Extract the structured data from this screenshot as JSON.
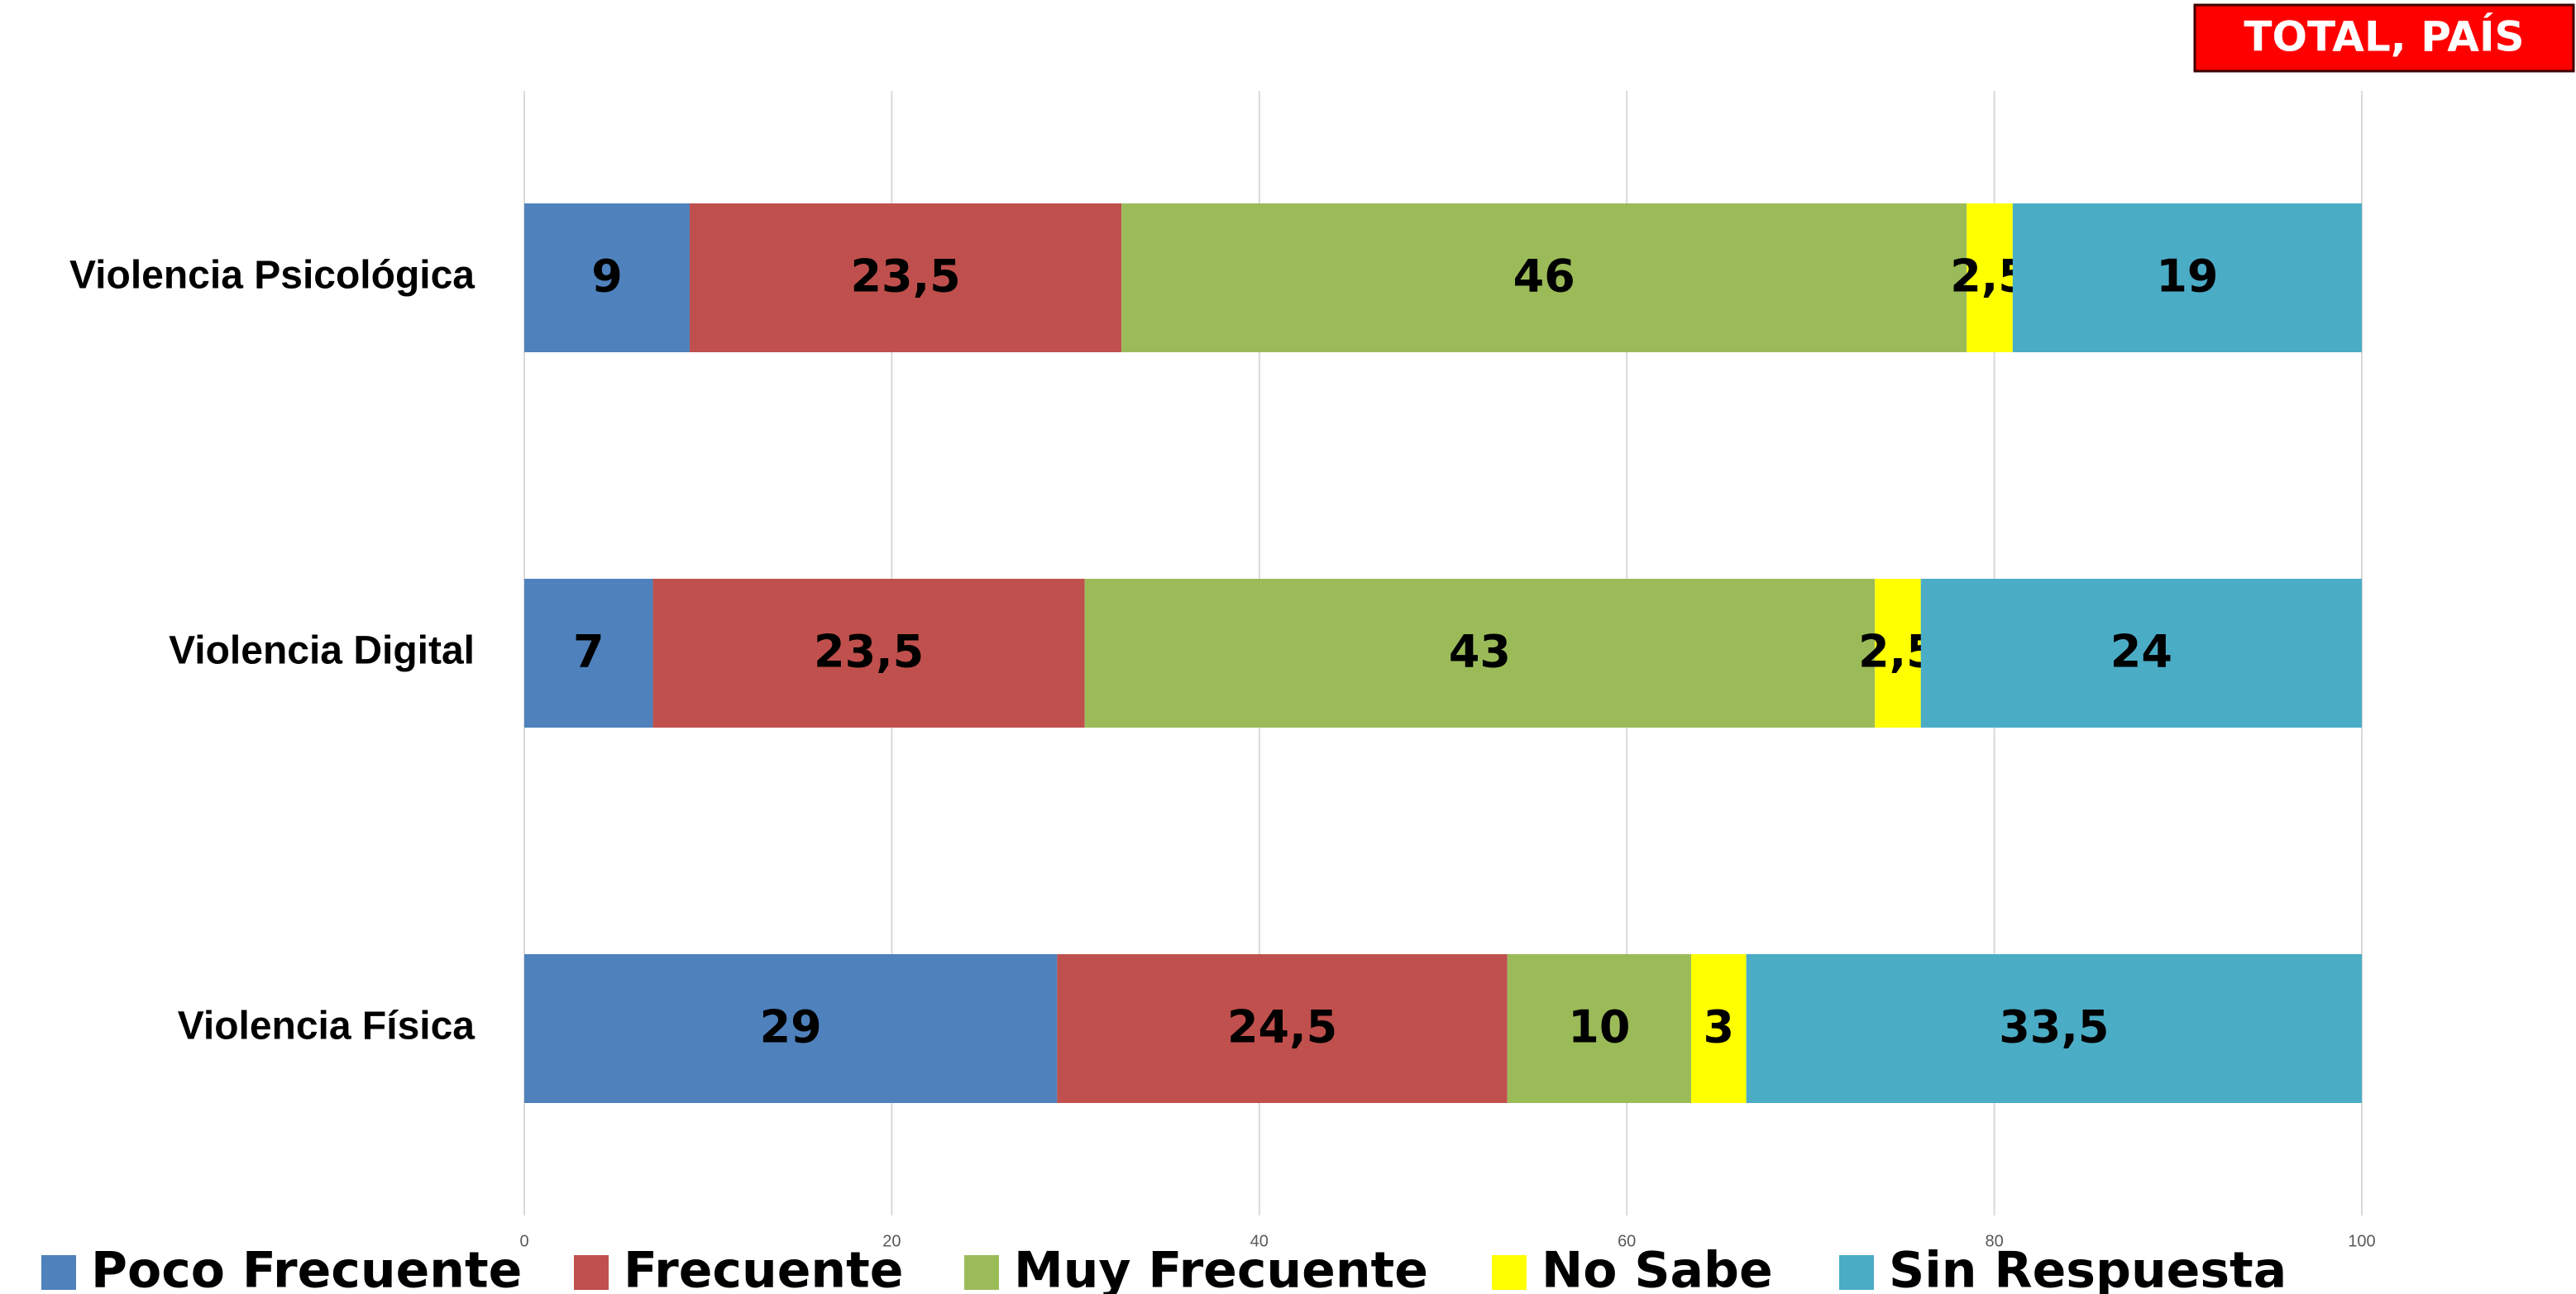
{
  "chart_data": {
    "type": "bar",
    "orientation": "horizontal",
    "stacked": true,
    "annotation": "TOTAL, PAÍS",
    "categories": [
      "Violencia Psicológica",
      "Violencia Digital",
      "Violencia Física"
    ],
    "series": [
      {
        "name": "Poco Frecuente",
        "color": "#4f81bd",
        "values": [
          9,
          7,
          29
        ]
      },
      {
        "name": "Frecuente",
        "color": "#c0504d",
        "values": [
          23.5,
          23.5,
          24.5
        ],
        "value_labels": [
          "23,5",
          "23,5",
          "24,5"
        ]
      },
      {
        "name": "Muy Frecuente",
        "color": "#9bbb59",
        "values": [
          46,
          43,
          10
        ]
      },
      {
        "name": "No Sabe",
        "color": "#ffff00",
        "values": [
          2.5,
          2.5,
          3
        ],
        "value_labels": [
          "2,5",
          "2,5",
          "3"
        ]
      },
      {
        "name": "Sin Respuesta",
        "color": "#4bacc6",
        "values": [
          19,
          24,
          33.5
        ],
        "value_labels": [
          "19",
          "24",
          "33,5"
        ]
      }
    ],
    "xlim": [
      0,
      100
    ],
    "xticks": [
      0,
      20,
      40,
      60,
      80,
      100
    ],
    "grid": true,
    "legend": "bottom"
  }
}
